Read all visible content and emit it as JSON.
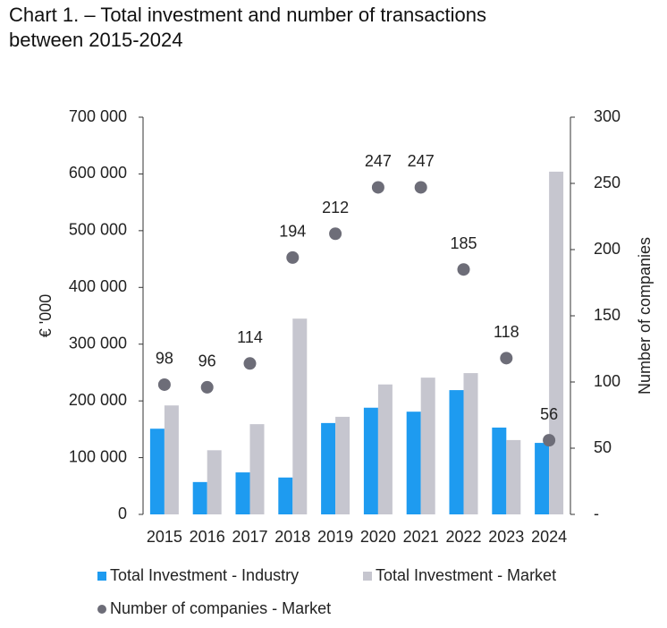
{
  "chart_data": {
    "type": "bar",
    "title": [
      "Chart 1. – Total investment and number of transactions",
      "between 2015-2024"
    ],
    "categories": [
      "2015",
      "2016",
      "2017",
      "2018",
      "2019",
      "2020",
      "2021",
      "2022",
      "2023",
      "2024"
    ],
    "y_label": "€ '000",
    "y2_label": "Number of companies",
    "ylim": [
      0,
      700000
    ],
    "yticks": [
      0,
      {
        "value": 100000,
        "label": "100 000"
      },
      {
        "value": 200000,
        "label": "200 000"
      },
      {
        "value": 300000,
        "label": "300 000"
      },
      {
        "value": 400000,
        "label": "400 000"
      },
      {
        "value": 500000,
        "label": "500 000"
      },
      {
        "value": 600000,
        "label": "600 000"
      },
      {
        "value": 700000,
        "label": "700 000"
      }
    ],
    "y2lim": [
      0,
      300
    ],
    "y2ticks": [
      {
        "value": 0,
        "label": "-"
      },
      50,
      100,
      150,
      200,
      250,
      300
    ],
    "grid": false,
    "series": [
      {
        "name": "Total Investment - Industry",
        "type": "bar",
        "color": "#1e9bf0",
        "values": [
          151000,
          57000,
          74000,
          65000,
          161000,
          188000,
          181000,
          219000,
          153000,
          126000
        ]
      },
      {
        "name": "Total Investment - Market",
        "type": "bar",
        "color": "#c6c6cf",
        "values": [
          192000,
          113000,
          159000,
          345000,
          172000,
          229000,
          241000,
          249000,
          131000,
          604000
        ]
      },
      {
        "name": "Number of companies - Market",
        "type": "scatter",
        "axis": "y2",
        "color": "#6d6d78",
        "values": [
          98,
          96,
          114,
          194,
          212,
          247,
          247,
          185,
          118,
          56
        ]
      }
    ]
  }
}
